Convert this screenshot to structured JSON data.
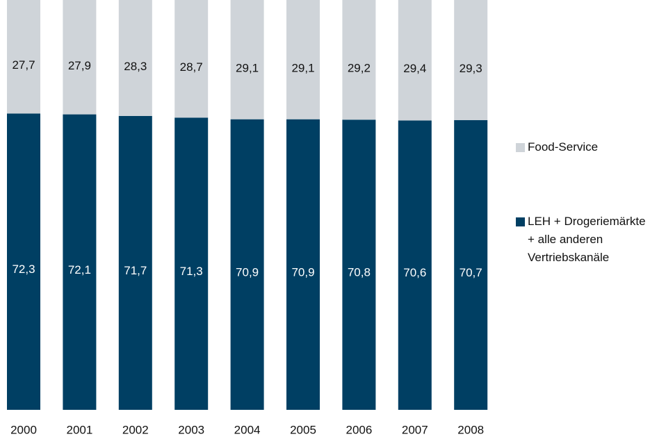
{
  "chart_data": {
    "type": "stacked_bar",
    "categories": [
      "2000",
      "2001",
      "2002",
      "2003",
      "2004",
      "2005",
      "2006",
      "2007",
      "2008"
    ],
    "series": [
      {
        "name": "LEH + Drogeriemärkte + alle anderen Vertriebskanäle",
        "color": "#003f63",
        "values": [
          72.3,
          72.1,
          71.7,
          71.3,
          70.9,
          70.9,
          70.8,
          70.6,
          70.7
        ],
        "value_labels": [
          "72,3",
          "72,1",
          "71,7",
          "71,3",
          "70,9",
          "70,9",
          "70,8",
          "70,6",
          "70,7"
        ]
      },
      {
        "name": "Food-Service",
        "color": "#cfd4d9",
        "values": [
          27.7,
          27.9,
          28.3,
          28.7,
          29.1,
          29.1,
          29.2,
          29.4,
          29.3
        ],
        "value_labels": [
          "27,7",
          "27,9",
          "28,3",
          "28,7",
          "29,1",
          "29,1",
          "29,2",
          "29,4",
          "29,3"
        ]
      }
    ],
    "ylim": [
      0,
      100
    ],
    "grid": false
  }
}
